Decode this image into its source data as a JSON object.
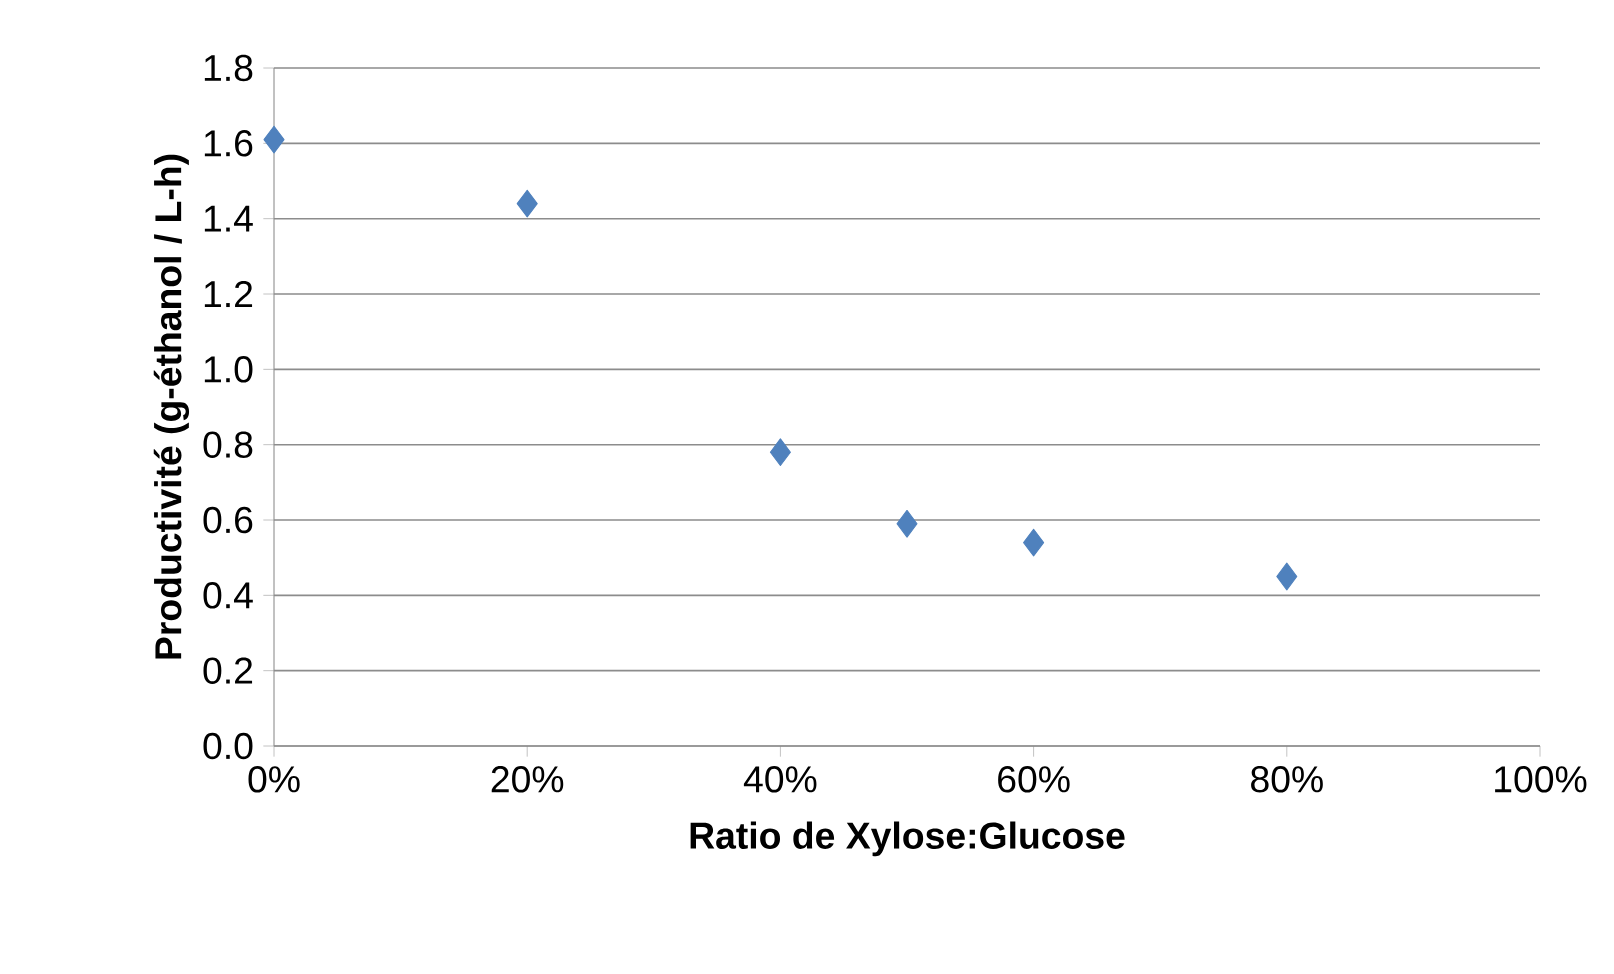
{
  "chart_data": {
    "type": "scatter",
    "xlabel": "Ratio de Xylose:Glucose",
    "ylabel": "Productivité (g-éthanol / L-h)",
    "x": [
      0,
      20,
      40,
      50,
      60,
      80
    ],
    "series": [
      {
        "color": "#4f81bd",
        "values": [
          1.61,
          1.44,
          0.78,
          0.59,
          0.54,
          0.45
        ]
      }
    ],
    "xlim": [
      0,
      100
    ],
    "xticks": [
      {
        "value": 0,
        "label": "0%"
      },
      {
        "value": 20,
        "label": "20%"
      },
      {
        "value": 40,
        "label": "40%"
      },
      {
        "value": 60,
        "label": "60%"
      },
      {
        "value": 80,
        "label": "80%"
      },
      {
        "value": 100,
        "label": "100%"
      }
    ],
    "ylim": [
      0,
      1.8
    ],
    "yticks": [
      {
        "value": 0,
        "label": "0.0"
      },
      {
        "value": 0.2,
        "label": "0.2"
      },
      {
        "value": 0.4,
        "label": "0.4"
      },
      {
        "value": 0.6,
        "label": "0.6"
      },
      {
        "value": 0.8,
        "label": "0.8"
      },
      {
        "value": 1.0,
        "label": "1.0"
      },
      {
        "value": 1.2,
        "label": "1.2"
      },
      {
        "value": 1.4,
        "label": "1.4"
      },
      {
        "value": 1.6,
        "label": "1.6"
      },
      {
        "value": 1.8,
        "label": "1.8"
      }
    ],
    "grid": "y",
    "marker": "diamond"
  }
}
